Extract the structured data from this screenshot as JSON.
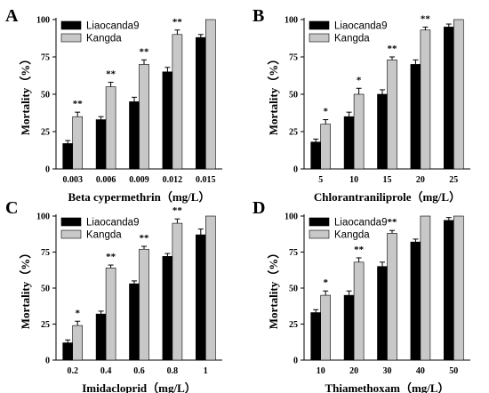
{
  "colors": {
    "series_a": "#000000",
    "series_b": "#c8c8c8",
    "axis": "#000000"
  },
  "chart_data": [
    {
      "panel": "A",
      "type": "bar",
      "xlabel": "Beta cypermethrin（mg/L）",
      "ylabel": "Mortality（%）",
      "ylim": [
        0,
        100
      ],
      "yticks": [
        "0",
        "25",
        "50",
        "75",
        "100"
      ],
      "categories": [
        "0.003",
        "0.006",
        "0.009",
        "0.012",
        "0.015"
      ],
      "series": [
        {
          "name": "Liaocanda9",
          "values": [
            17,
            33,
            45,
            65,
            88
          ],
          "errors": [
            2,
            2,
            3,
            3,
            2
          ]
        },
        {
          "name": "Kangda",
          "values": [
            35,
            55,
            70,
            90,
            100
          ],
          "errors": [
            3,
            3,
            3,
            3,
            0
          ]
        }
      ],
      "significance": [
        "**",
        "**",
        "**",
        "**",
        ""
      ],
      "legend": "top-left"
    },
    {
      "panel": "B",
      "type": "bar",
      "xlabel": "Chlorantraniliprole（mg/L）",
      "ylabel": "Mortality（%）",
      "ylim": [
        0,
        100
      ],
      "yticks": [
        "0",
        "25",
        "50",
        "75",
        "100"
      ],
      "categories": [
        "5",
        "10",
        "15",
        "20",
        "25"
      ],
      "series": [
        {
          "name": "Liaocanda9",
          "values": [
            18,
            35,
            50,
            70,
            95
          ],
          "errors": [
            2,
            3,
            3,
            3,
            2
          ]
        },
        {
          "name": "Kangda",
          "values": [
            30,
            50,
            73,
            93,
            100
          ],
          "errors": [
            3,
            4,
            2,
            2,
            0
          ]
        }
      ],
      "significance": [
        "*",
        "*",
        "**",
        "**",
        ""
      ],
      "legend": "top-left"
    },
    {
      "panel": "C",
      "type": "bar",
      "xlabel": "Imidacloprid（mg/L）",
      "ylabel": "Mortality（%）",
      "ylim": [
        0,
        100
      ],
      "yticks": [
        "0",
        "25",
        "50",
        "75",
        "100"
      ],
      "categories": [
        "0.2",
        "0.4",
        "0.6",
        "0.8",
        "1"
      ],
      "series": [
        {
          "name": "Liaocanda9",
          "values": [
            12,
            32,
            53,
            72,
            87
          ],
          "errors": [
            2,
            2,
            2,
            2,
            4
          ]
        },
        {
          "name": "Kangda",
          "values": [
            24,
            64,
            77,
            95,
            100
          ],
          "errors": [
            3,
            2,
            2,
            3,
            0
          ]
        }
      ],
      "significance": [
        "*",
        "**",
        "**",
        "**",
        ""
      ],
      "legend": "top-left"
    },
    {
      "panel": "D",
      "type": "bar",
      "xlabel": "Thiamethoxam（mg/L）",
      "ylabel": "Mortality（%）",
      "ylim": [
        0,
        100
      ],
      "yticks": [
        "0",
        "25",
        "50",
        "75",
        "100"
      ],
      "categories": [
        "10",
        "20",
        "30",
        "40",
        "50"
      ],
      "series": [
        {
          "name": "Liaocanda9",
          "values": [
            33,
            45,
            65,
            82,
            97
          ],
          "errors": [
            2,
            3,
            3,
            2,
            2
          ]
        },
        {
          "name": "Kangda",
          "values": [
            45,
            68,
            88,
            100,
            100
          ],
          "errors": [
            3,
            3,
            2,
            0,
            0
          ]
        }
      ],
      "significance": [
        "*",
        "**",
        "**",
        "",
        ""
      ],
      "legend": "top-left"
    }
  ]
}
